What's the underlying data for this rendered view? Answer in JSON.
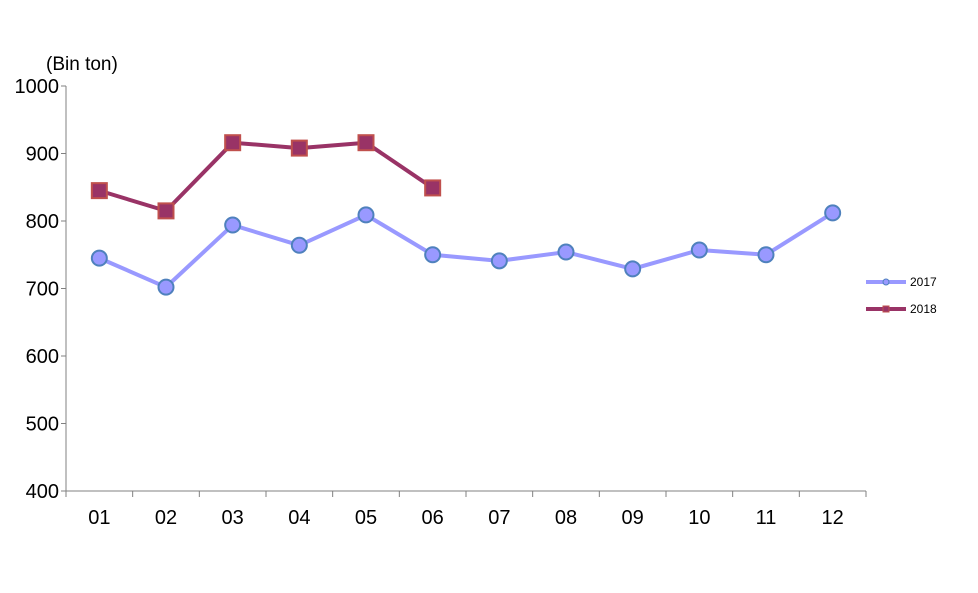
{
  "chart_data": {
    "type": "line",
    "title": "",
    "xlabel": "",
    "ylabel": "(Bin ton)",
    "categories": [
      "01",
      "02",
      "03",
      "04",
      "05",
      "06",
      "07",
      "08",
      "09",
      "10",
      "11",
      "12"
    ],
    "ylim": [
      400,
      1000
    ],
    "yticks": [
      "400",
      "500",
      "600",
      "700",
      "800",
      "900",
      "1000"
    ],
    "grid": false,
    "legend_position": "right",
    "series": [
      {
        "name": "2017",
        "color": "#9999ff",
        "marker": "circle",
        "marker_fill": "#9999ff",
        "marker_edge": "#4f81bd",
        "values": [
          745,
          702,
          794,
          764,
          809,
          750,
          741,
          754,
          729,
          757,
          750,
          812
        ]
      },
      {
        "name": "2018",
        "color": "#993366",
        "marker": "square",
        "marker_fill": "#993366",
        "marker_edge": "#c0504d",
        "values": [
          845,
          815,
          916,
          908,
          916,
          849,
          null,
          null,
          null,
          null,
          null,
          null
        ]
      }
    ]
  }
}
